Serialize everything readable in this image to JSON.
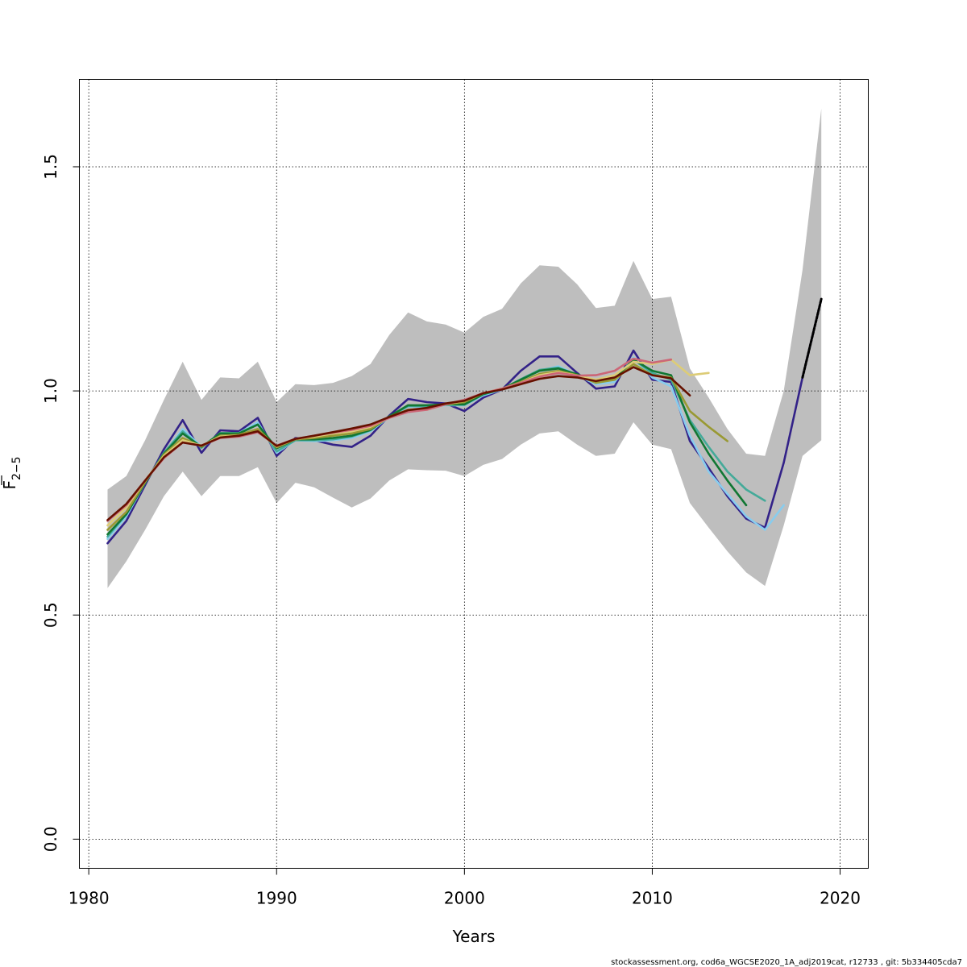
{
  "chart_data": {
    "type": "line",
    "xlabel": "Years",
    "ylabel_main": "F",
    "ylabel_sub": "2−5",
    "xlim": [
      1979.5,
      2021.5
    ],
    "ylim": [
      -0.065,
      1.695
    ],
    "x_ticks": [
      1980,
      1990,
      2000,
      2010,
      2020
    ],
    "x_tick_labels": [
      "1980",
      "1990",
      "2000",
      "2010",
      "2020"
    ],
    "y_ticks": [
      0,
      0.5,
      1,
      1.5
    ],
    "y_tick_labels": [
      "0.0",
      "0.5",
      "1.0",
      "1.5"
    ],
    "grid": true,
    "confidence_band": {
      "color": "#bebebe",
      "x": [
        1981,
        1982,
        1983,
        1984,
        1985,
        1986,
        1987,
        1988,
        1989,
        1990,
        1991,
        1992,
        1993,
        1994,
        1995,
        1996,
        1997,
        1998,
        1999,
        2000,
        2001,
        2002,
        2003,
        2004,
        2005,
        2006,
        2007,
        2008,
        2009,
        2010,
        2011,
        2012,
        2013,
        2014,
        2015,
        2016,
        2017,
        2018,
        2019
      ],
      "upper": [
        0.78,
        0.81,
        0.89,
        0.98,
        1.065,
        0.98,
        1.03,
        1.028,
        1.065,
        0.975,
        1.015,
        1.013,
        1.018,
        1.033,
        1.06,
        1.125,
        1.175,
        1.155,
        1.148,
        1.13,
        1.165,
        1.183,
        1.24,
        1.28,
        1.277,
        1.238,
        1.185,
        1.19,
        1.29,
        1.205,
        1.21,
        1.05,
        0.985,
        0.915,
        0.86,
        0.855,
        1.0,
        1.27,
        1.63
      ],
      "lower": [
        0.56,
        0.62,
        0.69,
        0.765,
        0.82,
        0.765,
        0.81,
        0.81,
        0.83,
        0.75,
        0.795,
        0.785,
        0.762,
        0.74,
        0.76,
        0.8,
        0.825,
        0.823,
        0.822,
        0.81,
        0.835,
        0.848,
        0.88,
        0.905,
        0.91,
        0.88,
        0.855,
        0.86,
        0.93,
        0.88,
        0.87,
        0.75,
        0.695,
        0.642,
        0.595,
        0.565,
        0.7,
        0.855,
        0.89
      ]
    },
    "series": [
      {
        "color": "#332288",
        "x": [
          1981,
          1982,
          1983,
          1984,
          1985,
          1986,
          1987,
          1988,
          1989,
          1990,
          1991,
          1992,
          1993,
          1994,
          1995,
          1996,
          1997,
          1998,
          1999,
          2000,
          2001,
          2002,
          2003,
          2004,
          2005,
          2006,
          2007,
          2008,
          2009,
          2010,
          2011,
          2012,
          2013,
          2014,
          2015,
          2016,
          2017,
          2018,
          2019
        ],
        "values": [
          0.66,
          0.71,
          0.79,
          0.87,
          0.935,
          0.862,
          0.912,
          0.91,
          0.94,
          0.855,
          0.895,
          0.89,
          0.88,
          0.875,
          0.9,
          0.945,
          0.982,
          0.975,
          0.972,
          0.955,
          0.985,
          1.003,
          1.045,
          1.077,
          1.077,
          1.04,
          1.005,
          1.01,
          1.09,
          1.025,
          1.02,
          0.888,
          0.828,
          0.765,
          0.715,
          0.695,
          0.84,
          1.03,
          1.205
        ]
      },
      {
        "color": "#88CCEE",
        "x": [
          1981,
          1982,
          1983,
          1984,
          1985,
          1986,
          1987,
          1988,
          1989,
          1990,
          1991,
          1992,
          1993,
          1994,
          1995,
          1996,
          1997,
          1998,
          1999,
          2000,
          2001,
          2002,
          2003,
          2004,
          2005,
          2006,
          2007,
          2008,
          2009,
          2010,
          2011,
          2012,
          2013,
          2014,
          2015,
          2016,
          2017
        ],
        "values": [
          0.67,
          0.72,
          0.795,
          0.86,
          0.915,
          0.875,
          0.905,
          0.906,
          0.93,
          0.862,
          0.89,
          0.888,
          0.89,
          0.895,
          0.91,
          0.942,
          0.965,
          0.965,
          0.968,
          0.968,
          0.99,
          1.003,
          1.025,
          1.045,
          1.055,
          1.035,
          1.015,
          1.02,
          1.075,
          1.03,
          1.01,
          0.9,
          0.82,
          0.77,
          0.72,
          0.69,
          0.745
        ]
      },
      {
        "color": "#44AA99",
        "x": [
          1981,
          1982,
          1983,
          1984,
          1985,
          1986,
          1987,
          1988,
          1989,
          1990,
          1991,
          1992,
          1993,
          1994,
          1995,
          1996,
          1997,
          1998,
          1999,
          2000,
          2001,
          2002,
          2003,
          2004,
          2005,
          2006,
          2007,
          2008,
          2009,
          2010,
          2011,
          2012,
          2013,
          2014,
          2015,
          2016
        ],
        "values": [
          0.675,
          0.725,
          0.795,
          0.862,
          0.91,
          0.873,
          0.906,
          0.906,
          0.925,
          0.865,
          0.89,
          0.89,
          0.892,
          0.898,
          0.912,
          0.943,
          0.966,
          0.966,
          0.969,
          0.969,
          0.992,
          1.004,
          1.026,
          1.047,
          1.052,
          1.036,
          1.02,
          1.025,
          1.07,
          1.04,
          1.025,
          0.935,
          0.875,
          0.82,
          0.78,
          0.755
        ]
      },
      {
        "color": "#117733",
        "x": [
          1981,
          1982,
          1983,
          1984,
          1985,
          1986,
          1987,
          1988,
          1989,
          1990,
          1991,
          1992,
          1993,
          1994,
          1995,
          1996,
          1997,
          1998,
          1999,
          2000,
          2001,
          2002,
          2003,
          2004,
          2005,
          2006,
          2007,
          2008,
          2009,
          2010,
          2011,
          2012,
          2013,
          2014,
          2015
        ],
        "values": [
          0.68,
          0.725,
          0.795,
          0.86,
          0.905,
          0.875,
          0.905,
          0.905,
          0.925,
          0.872,
          0.892,
          0.892,
          0.895,
          0.9,
          0.913,
          0.943,
          0.968,
          0.968,
          0.97,
          0.97,
          0.993,
          1.004,
          1.025,
          1.045,
          1.05,
          1.037,
          1.022,
          1.027,
          1.07,
          1.045,
          1.035,
          0.93,
          0.86,
          0.8,
          0.745
        ]
      },
      {
        "color": "#999933",
        "x": [
          1981,
          1982,
          1983,
          1984,
          1985,
          1986,
          1987,
          1988,
          1989,
          1990,
          1991,
          1992,
          1993,
          1994,
          1995,
          1996,
          1997,
          1998,
          1999,
          2000,
          2001,
          2002,
          2003,
          2004,
          2005,
          2006,
          2007,
          2008,
          2009,
          2010,
          2011,
          2012,
          2013,
          2014
        ],
        "values": [
          0.69,
          0.73,
          0.797,
          0.858,
          0.895,
          0.876,
          0.9,
          0.902,
          0.915,
          0.874,
          0.892,
          0.895,
          0.9,
          0.905,
          0.915,
          0.942,
          0.958,
          0.96,
          0.97,
          0.975,
          0.995,
          1.005,
          1.02,
          1.038,
          1.045,
          1.035,
          1.018,
          1.025,
          1.06,
          1.035,
          1.03,
          0.955,
          0.92,
          0.888
        ]
      },
      {
        "color": "#DDCC77",
        "x": [
          1981,
          1982,
          1983,
          1984,
          1985,
          1986,
          1987,
          1988,
          1989,
          1990,
          1991,
          1992,
          1993,
          1994,
          1995,
          1996,
          1997,
          1998,
          1999,
          2000,
          2001,
          2002,
          2003,
          2004,
          2005,
          2006,
          2007,
          2008,
          2009,
          2010,
          2011,
          2012,
          2013
        ],
        "values": [
          0.7,
          0.74,
          0.8,
          0.855,
          0.89,
          0.878,
          0.898,
          0.9,
          0.91,
          0.876,
          0.893,
          0.898,
          0.905,
          0.91,
          0.92,
          0.94,
          0.955,
          0.958,
          0.97,
          0.978,
          0.995,
          1.005,
          1.018,
          1.035,
          1.042,
          1.034,
          1.025,
          1.035,
          1.065,
          1.06,
          1.07,
          1.035,
          1.04
        ]
      },
      {
        "color": "#CC6677",
        "x": [
          1981,
          1982,
          1983,
          1984,
          1985,
          1986,
          1987,
          1988,
          1989,
          1990,
          1991,
          1992,
          1993,
          1994,
          1995,
          1996,
          1997,
          1998,
          1999,
          2000,
          2001,
          2002,
          2003,
          2004,
          2005,
          2006,
          2007,
          2008,
          2009,
          2010,
          2011
        ],
        "values": [
          0.71,
          0.745,
          0.8,
          0.85,
          0.885,
          0.878,
          0.895,
          0.898,
          0.908,
          0.878,
          0.893,
          0.9,
          0.907,
          0.913,
          0.922,
          0.94,
          0.953,
          0.958,
          0.97,
          0.98,
          0.995,
          1.005,
          1.018,
          1.032,
          1.04,
          1.034,
          1.035,
          1.045,
          1.072,
          1.063,
          1.07
        ]
      },
      {
        "color": "#661100",
        "x": [
          1981,
          1982,
          1983,
          1984,
          1985,
          1986,
          1987,
          1988,
          1989,
          1990,
          1991,
          1992,
          1993,
          1994,
          1995,
          1996,
          1997,
          1998,
          1999,
          2000,
          2001,
          2002,
          2003,
          2004,
          2005,
          2006,
          2007,
          2008,
          2009,
          2010,
          2011,
          2012
        ],
        "values": [
          0.712,
          0.748,
          0.8,
          0.852,
          0.885,
          0.878,
          0.896,
          0.9,
          0.91,
          0.877,
          0.893,
          0.9,
          0.908,
          0.916,
          0.925,
          0.942,
          0.957,
          0.962,
          0.972,
          0.978,
          0.995,
          1.003,
          1.015,
          1.027,
          1.033,
          1.03,
          1.022,
          1.03,
          1.053,
          1.035,
          1.028,
          0.99
        ]
      },
      {
        "color": "#888888",
        "dashed": true,
        "x": [
          2018,
          2019
        ],
        "values": [
          1.03,
          1.205
        ]
      }
    ]
  },
  "footer_text": "stockassessment.org, cod6a_WGCSE2020_1A_adj2019cat, r12733 , git: 5b334405cda7"
}
